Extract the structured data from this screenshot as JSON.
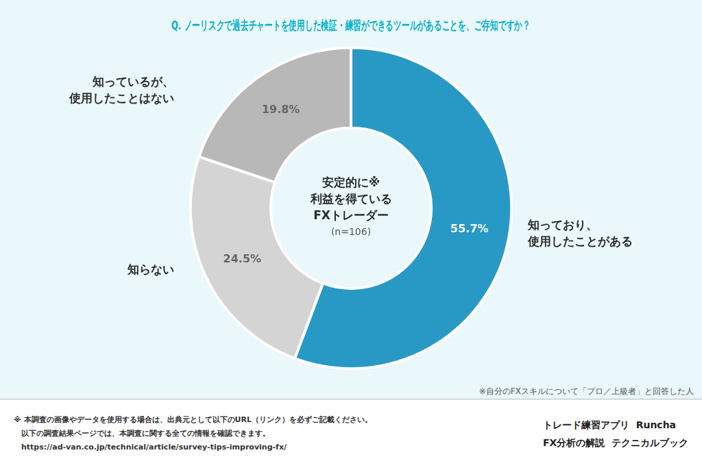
{
  "chart_data": {
    "type": "doughnut",
    "title": "Q. ノーリスクで過去チャートを使用した検証・練習ができるツールがあることを、ご存知ですか？",
    "categories": [
      "知っており、\n使用したことがある",
      "知らない",
      "知っているが、\n使用したことはない"
    ],
    "values": [
      55.7,
      24.5,
      19.8
    ],
    "value_labels": [
      "55.7%",
      "24.5%",
      "19.8%"
    ],
    "data_labels": true,
    "colors": [
      "#2899c4",
      "#d4d4d4",
      "#b8b8b8"
    ],
    "legend": false,
    "center_text": [
      "安定的に※",
      "利益を得ている",
      "FXトレーダー",
      "(n=106)"
    ],
    "note": "※自分のFXスキルについて「プロ／上級者」と回答した人",
    "footer_lines": [
      "※ 本調査の画像やデータを使用する場合は、出典元として以下のURL（リンク）を必ずご記載ください。",
      "　以下の調査結果ページでは、本調査に関する全ての情報を確認できます。",
      "　https://ad-van.co.jp/technical/article/survey-tips-improving-fx/"
    ],
    "brand_lines": [
      "トレード練習アプリ  Runcha",
      "FX分析の解説  テクニカルブック"
    ]
  }
}
